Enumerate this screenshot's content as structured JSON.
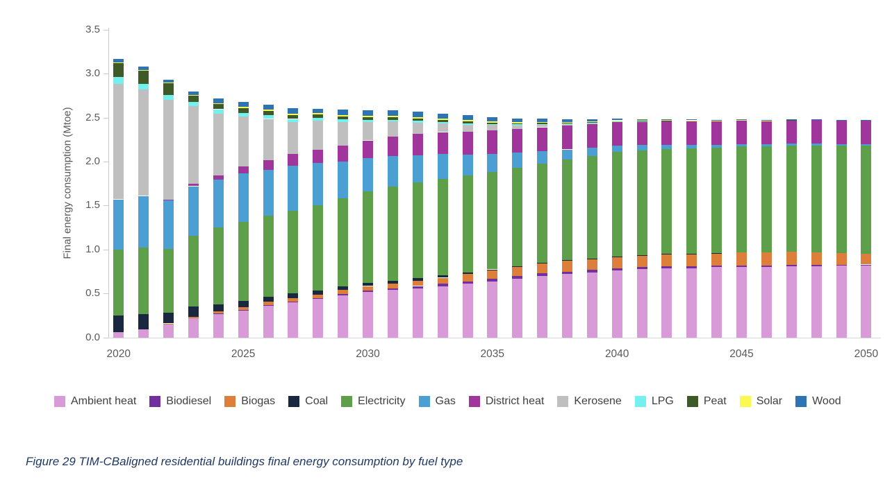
{
  "caption": "Figure 29 TIM-CBaligned residential buildings final energy consumption by fuel type",
  "colors": {
    "axis_line": "#c9c9c9",
    "tick_label": "#595959",
    "legend_label": "#3f3f3f",
    "caption_text": "#1f3864"
  },
  "chart_data": {
    "type": "bar",
    "stacked": true,
    "title": "",
    "xlabel": "",
    "ylabel": "Final energy consumption (Mtoe)",
    "ylim": [
      0,
      3.5
    ],
    "ytick_step": 0.5,
    "grid": false,
    "legend_position": "bottom",
    "x": [
      2020,
      2021,
      2022,
      2023,
      2024,
      2025,
      2026,
      2027,
      2028,
      2029,
      2030,
      2031,
      2032,
      2033,
      2034,
      2035,
      2036,
      2037,
      2038,
      2039,
      2040,
      2041,
      2042,
      2043,
      2044,
      2045,
      2046,
      2047,
      2048,
      2049,
      2050
    ],
    "xticks": [
      2020,
      2025,
      2030,
      2035,
      2040,
      2045,
      2050
    ],
    "series": [
      {
        "name": "Ambient heat",
        "color": "#d99bd7",
        "values": [
          0.06,
          0.09,
          0.15,
          0.22,
          0.27,
          0.31,
          0.36,
          0.4,
          0.44,
          0.48,
          0.52,
          0.54,
          0.56,
          0.58,
          0.61,
          0.64,
          0.67,
          0.7,
          0.72,
          0.74,
          0.76,
          0.78,
          0.79,
          0.79,
          0.8,
          0.8,
          0.8,
          0.81,
          0.81,
          0.82,
          0.82
        ]
      },
      {
        "name": "Biodiesel",
        "color": "#7030a0",
        "values": [
          0,
          0,
          0,
          0,
          0.005,
          0.005,
          0.01,
          0.01,
          0.01,
          0.015,
          0.015,
          0.02,
          0.025,
          0.03,
          0.03,
          0.03,
          0.03,
          0.03,
          0.03,
          0.03,
          0.025,
          0.025,
          0.02,
          0.02,
          0.02,
          0.02,
          0.015,
          0.015,
          0.015,
          0.01,
          0.01
        ]
      },
      {
        "name": "Biogas",
        "color": "#dd7e3b",
        "values": [
          0,
          0,
          0.01,
          0.015,
          0.02,
          0.03,
          0.035,
          0.04,
          0.04,
          0.045,
          0.05,
          0.055,
          0.06,
          0.07,
          0.08,
          0.09,
          0.1,
          0.11,
          0.12,
          0.12,
          0.13,
          0.13,
          0.14,
          0.14,
          0.14,
          0.15,
          0.15,
          0.15,
          0.14,
          0.13,
          0.12
        ]
      },
      {
        "name": "Coal",
        "color": "#1a2740",
        "values": [
          0.19,
          0.18,
          0.12,
          0.115,
          0.08,
          0.07,
          0.06,
          0.05,
          0.045,
          0.04,
          0.035,
          0.03,
          0.03,
          0.025,
          0.02,
          0.015,
          0.012,
          0.01,
          0.008,
          0.005,
          0.004,
          0.003,
          0.002,
          0.002,
          0.001,
          0,
          0,
          0,
          0,
          0,
          0
        ]
      },
      {
        "name": "Electricity",
        "color": "#5ea049",
        "values": [
          0.75,
          0.75,
          0.73,
          0.81,
          0.88,
          0.9,
          0.92,
          0.94,
          0.97,
          1.0,
          1.04,
          1.07,
          1.09,
          1.1,
          1.1,
          1.11,
          1.12,
          1.13,
          1.15,
          1.17,
          1.19,
          1.19,
          1.19,
          1.2,
          1.2,
          1.2,
          1.21,
          1.21,
          1.22,
          1.22,
          1.23
        ]
      },
      {
        "name": "Gas",
        "color": "#4b9fd2",
        "values": [
          0.57,
          0.59,
          0.55,
          0.56,
          0.54,
          0.55,
          0.52,
          0.51,
          0.48,
          0.42,
          0.38,
          0.35,
          0.31,
          0.28,
          0.24,
          0.2,
          0.17,
          0.14,
          0.11,
          0.09,
          0.07,
          0.06,
          0.05,
          0.04,
          0.03,
          0.03,
          0.02,
          0.02,
          0.02,
          0.02,
          0.02
        ]
      },
      {
        "name": "District heat",
        "color": "#a0369b",
        "values": [
          0,
          0,
          0.01,
          0.03,
          0.05,
          0.08,
          0.11,
          0.14,
          0.15,
          0.18,
          0.2,
          0.22,
          0.24,
          0.25,
          0.26,
          0.27,
          0.27,
          0.27,
          0.27,
          0.27,
          0.27,
          0.27,
          0.27,
          0.27,
          0.27,
          0.27,
          0.27,
          0.27,
          0.27,
          0.27,
          0.27
        ]
      },
      {
        "name": "Kerosene",
        "color": "#bfbfbf",
        "values": [
          1.31,
          1.21,
          1.13,
          0.88,
          0.7,
          0.57,
          0.47,
          0.36,
          0.33,
          0.27,
          0.21,
          0.17,
          0.13,
          0.1,
          0.08,
          0.06,
          0.04,
          0.03,
          0.02,
          0.01,
          0.005,
          0,
          0,
          0,
          0,
          0,
          0,
          0,
          0,
          0,
          0
        ]
      },
      {
        "name": "LPG",
        "color": "#72f1ee",
        "values": [
          0.08,
          0.06,
          0.06,
          0.05,
          0.05,
          0.04,
          0.04,
          0.035,
          0.03,
          0.03,
          0.025,
          0.02,
          0.02,
          0.015,
          0.015,
          0.01,
          0.01,
          0.008,
          0.005,
          0.005,
          0.004,
          0.003,
          0.002,
          0.002,
          0.001,
          0,
          0,
          0,
          0,
          0,
          0
        ]
      },
      {
        "name": "Peat",
        "color": "#3e5b27",
        "values": [
          0.16,
          0.15,
          0.13,
          0.07,
          0.06,
          0.055,
          0.05,
          0.045,
          0.04,
          0.035,
          0.03,
          0.028,
          0.025,
          0.022,
          0.02,
          0.018,
          0.015,
          0.012,
          0.01,
          0.008,
          0.006,
          0.005,
          0.004,
          0.003,
          0.002,
          0.002,
          0.001,
          0.001,
          0,
          0,
          0
        ]
      },
      {
        "name": "Solar",
        "color": "#faf950",
        "values": [
          0.01,
          0.01,
          0.01,
          0.01,
          0.01,
          0.015,
          0.015,
          0.015,
          0.015,
          0.015,
          0.015,
          0.015,
          0.015,
          0.015,
          0.015,
          0.012,
          0.01,
          0.01,
          0.008,
          0.006,
          0.005,
          0.004,
          0.003,
          0.002,
          0.002,
          0.001,
          0.001,
          0,
          0,
          0,
          0
        ]
      },
      {
        "name": "Wood",
        "color": "#2e74b5",
        "values": [
          0.04,
          0.04,
          0.03,
          0.04,
          0.05,
          0.05,
          0.055,
          0.06,
          0.05,
          0.06,
          0.06,
          0.065,
          0.065,
          0.06,
          0.06,
          0.05,
          0.045,
          0.04,
          0.03,
          0.025,
          0.02,
          0.015,
          0.012,
          0.01,
          0.008,
          0.006,
          0.005,
          0.004,
          0.003,
          0.002,
          0.002
        ]
      }
    ]
  }
}
